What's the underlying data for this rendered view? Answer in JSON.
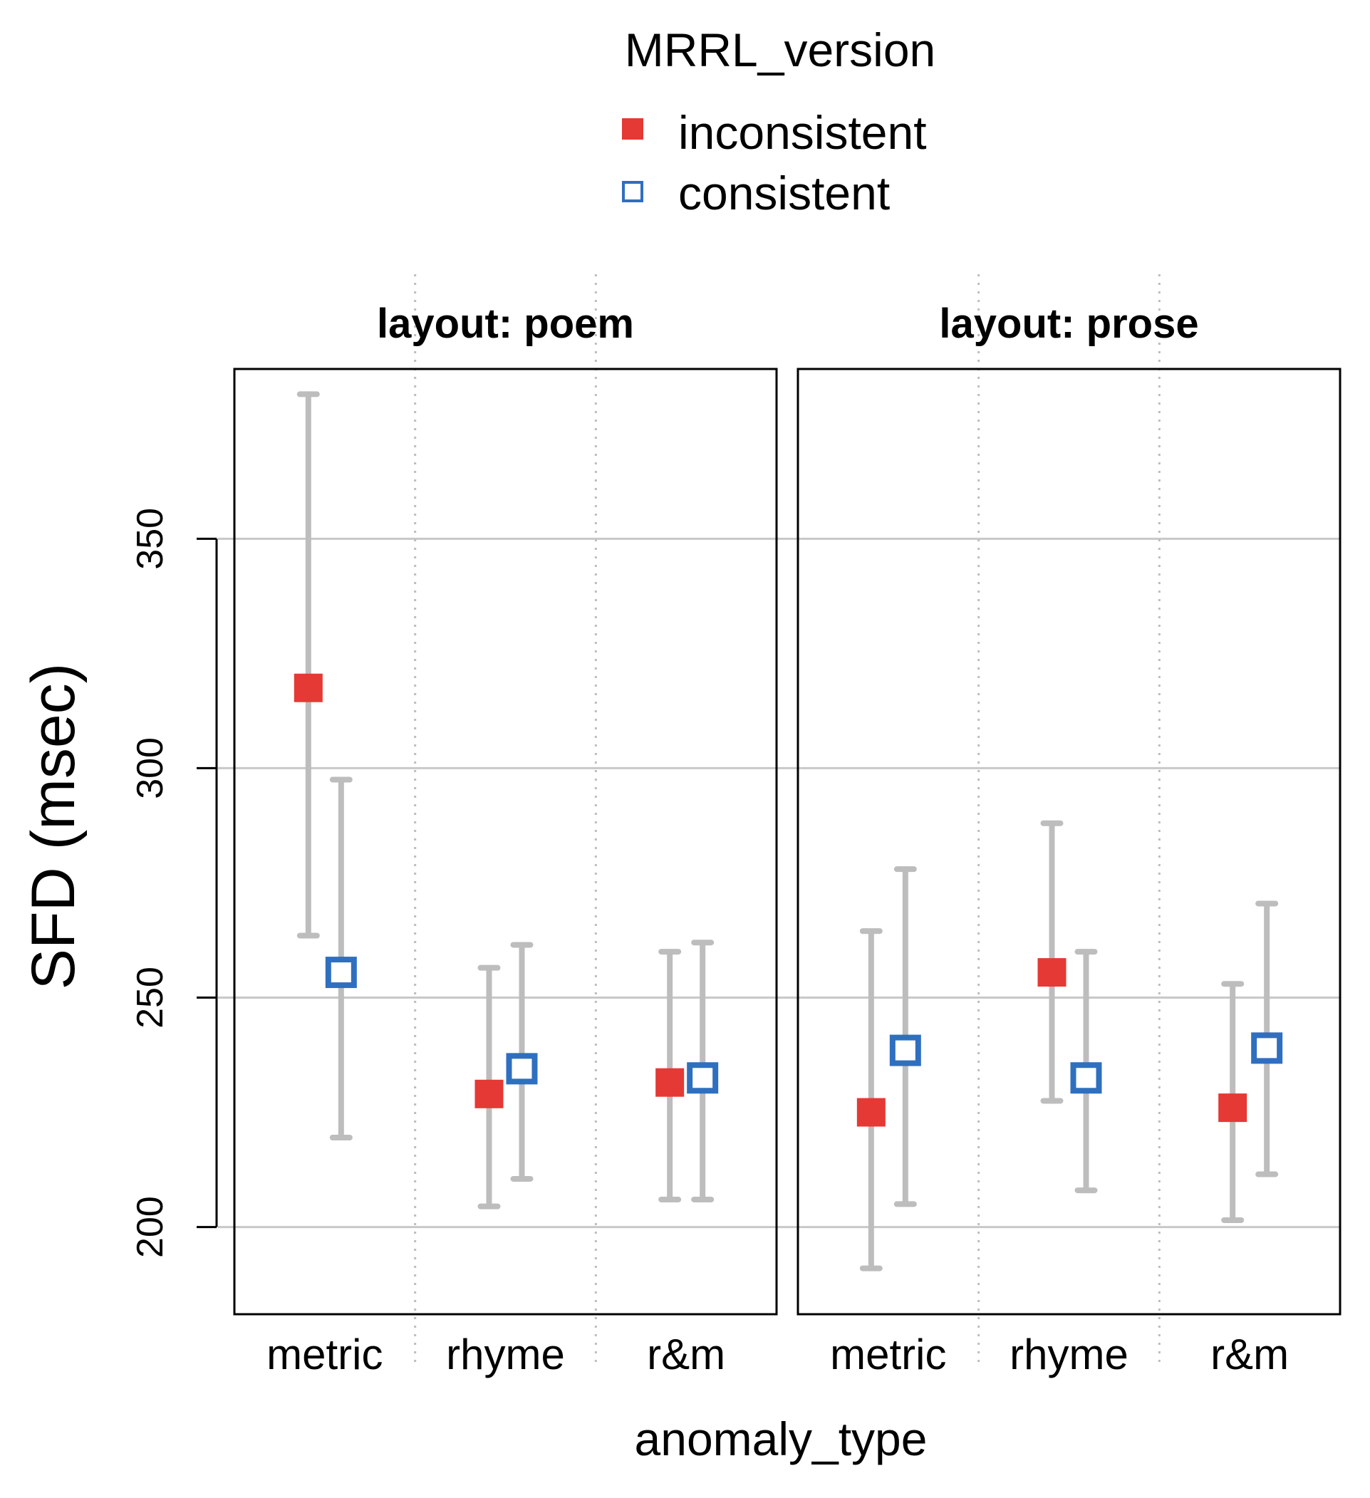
{
  "chart_data": {
    "type": "scatter",
    "title": "",
    "xlabel": "anomaly_type",
    "ylabel": "SFD (msec)",
    "ylim": [
      181,
      387
    ],
    "yticks": [
      "200",
      "250",
      "300",
      "350"
    ],
    "yticks_values": [
      200,
      250,
      300,
      350
    ],
    "categories": [
      "metric",
      "rhyme",
      "r&m"
    ],
    "legend": {
      "title": "MRRL_version",
      "placement": "top-center",
      "entries": [
        {
          "label": "inconsistent",
          "marker": "filled-square",
          "color": "#E53935"
        },
        {
          "label": "consistent",
          "marker": "open-square",
          "color": "#2F6FBF"
        }
      ]
    },
    "grid": true,
    "error_bar_color": "#BDBDBD",
    "gridline_color": "#C8C8C8",
    "panels": [
      {
        "title": "layout: poem",
        "series": [
          {
            "name": "inconsistent",
            "mean": [
              317.5,
              229,
              231.5
            ],
            "lower": [
              263.5,
              204.5,
              206
            ],
            "upper": [
              381.5,
              256.5,
              260
            ]
          },
          {
            "name": "consistent",
            "mean": [
              255.5,
              234.5,
              232.5
            ],
            "lower": [
              219.5,
              210.5,
              206
            ],
            "upper": [
              297.5,
              261.5,
              262
            ]
          }
        ]
      },
      {
        "title": "layout: prose",
        "series": [
          {
            "name": "inconsistent",
            "mean": [
              225,
              255.5,
              226
            ],
            "lower": [
              191,
              227.5,
              201.5
            ],
            "upper": [
              264.5,
              288,
              253
            ]
          },
          {
            "name": "consistent",
            "mean": [
              238.5,
              232.5,
              239
            ],
            "lower": [
              205,
              208,
              211.5
            ],
            "upper": [
              278,
              260,
              270.5
            ]
          }
        ]
      }
    ]
  }
}
